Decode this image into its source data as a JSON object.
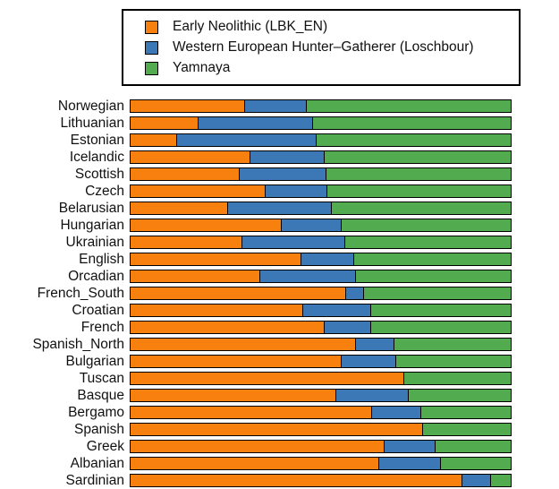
{
  "figure": {
    "background": "#ffffff",
    "bar_border_color": "#000000"
  },
  "legend": {
    "items": [
      {
        "key": "en",
        "label": "Early Neolithic (LBK_EN)",
        "color": "#F8800F",
        "icon": "orange-swatch-icon"
      },
      {
        "key": "whg",
        "label": "Western European Hunter–Gatherer (Loschbour)",
        "color": "#3B78B5",
        "icon": "blue-swatch-icon"
      },
      {
        "key": "yamnaya",
        "label": "Yamnaya",
        "color": "#52AC4F",
        "icon": "green-swatch-icon"
      }
    ]
  },
  "chart_data": {
    "type": "bar",
    "orientation": "horizontal-stacked",
    "title": "",
    "xlabel": "",
    "ylabel": "",
    "xlim": [
      0,
      100
    ],
    "units": "percent ancestry",
    "grid": false,
    "legend_position": "top",
    "categories": [
      "Norwegian",
      "Lithuanian",
      "Estonian",
      "Icelandic",
      "Scottish",
      "Czech",
      "Belarusian",
      "Hungarian",
      "Ukrainian",
      "English",
      "Orcadian",
      "French_South",
      "Croatian",
      "French",
      "Spanish_North",
      "Bulgarian",
      "Tuscan",
      "Basque",
      "Bergamo",
      "Spanish",
      "Greek",
      "Albanian",
      "Sardinian"
    ],
    "series": [
      {
        "key": "en",
        "name": "Early Neolithic (LBK_EN)",
        "color": "#F8800F",
        "values": [
          29.9,
          17.6,
          12.0,
          31.3,
          28.5,
          35.3,
          25.4,
          39.5,
          29.2,
          44.7,
          33.9,
          56.5,
          45.2,
          50.8,
          59.1,
          55.3,
          71.8,
          53.9,
          63.3,
          76.7,
          66.6,
          65.2,
          87.1
        ]
      },
      {
        "key": "whg",
        "name": "Western European Hunter–Gatherer (Loschbour)",
        "color": "#3B78B5",
        "values": [
          16.2,
          30.1,
          36.7,
          19.5,
          22.8,
          16.2,
          27.3,
          15.8,
          27.1,
          13.9,
          25.2,
          4.7,
          17.9,
          12.2,
          10.1,
          14.4,
          0.0,
          19.1,
          12.9,
          0.0,
          13.4,
          16.2,
          7.5
        ]
      },
      {
        "key": "yamnaya",
        "name": "Yamnaya",
        "color": "#52AC4F",
        "values": [
          53.9,
          52.3,
          51.3,
          49.2,
          48.7,
          48.5,
          47.3,
          44.7,
          43.7,
          41.4,
          40.9,
          38.8,
          36.9,
          37.0,
          30.8,
          30.3,
          28.2,
          27.0,
          23.8,
          23.3,
          20.0,
          18.6,
          5.4
        ]
      }
    ]
  }
}
